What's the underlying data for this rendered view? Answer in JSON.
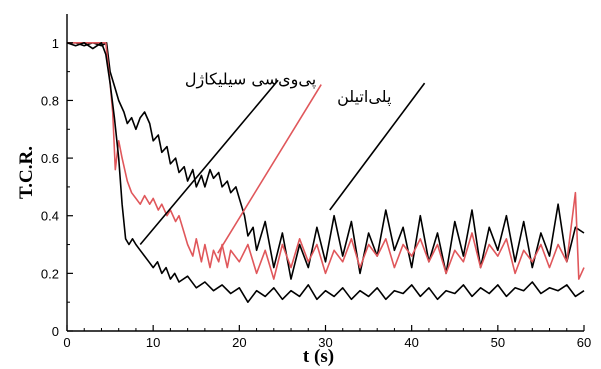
{
  "chart_data": {
    "type": "line",
    "title": "",
    "xlabel": "t (s)",
    "ylabel": "T.C.R.",
    "xlim": [
      0,
      60
    ],
    "ylim": [
      0,
      1.1
    ],
    "grid": false,
    "x_ticks": [
      "0",
      "10",
      "20",
      "30",
      "40",
      "50",
      "60"
    ],
    "y_ticks": [
      "0",
      "0.2",
      "0.4",
      "0.6",
      "0.8",
      "1"
    ],
    "x_tick_values": [
      0,
      10,
      20,
      30,
      40,
      50,
      60
    ],
    "y_tick_values": [
      0,
      0.2,
      0.4,
      0.6,
      0.8,
      1
    ],
    "series": [
      {
        "color": "#000000",
        "points": [
          [
            0,
            1.0
          ],
          [
            1,
            1.0
          ],
          [
            2,
            0.99
          ],
          [
            3,
            1.0
          ],
          [
            4,
            0.99
          ],
          [
            4.6,
            1.0
          ],
          [
            5,
            0.9
          ],
          [
            5.6,
            0.84
          ],
          [
            6,
            0.8
          ],
          [
            6.6,
            0.76
          ],
          [
            7,
            0.72
          ],
          [
            7.5,
            0.74
          ],
          [
            8,
            0.7
          ],
          [
            8.5,
            0.74
          ],
          [
            9,
            0.76
          ],
          [
            9.6,
            0.72
          ],
          [
            10,
            0.66
          ],
          [
            10.6,
            0.68
          ],
          [
            11,
            0.62
          ],
          [
            11.6,
            0.64
          ],
          [
            12,
            0.58
          ],
          [
            12.6,
            0.6
          ],
          [
            13,
            0.55
          ],
          [
            13.6,
            0.57
          ],
          [
            14,
            0.52
          ],
          [
            14.6,
            0.56
          ],
          [
            15,
            0.5
          ],
          [
            15.6,
            0.54
          ],
          [
            16,
            0.5
          ],
          [
            16.6,
            0.56
          ],
          [
            17,
            0.53
          ],
          [
            17.6,
            0.55
          ],
          [
            18,
            0.5
          ],
          [
            18.6,
            0.52
          ],
          [
            19,
            0.48
          ],
          [
            19.6,
            0.5
          ],
          [
            20,
            0.46
          ],
          [
            20.6,
            0.4
          ],
          [
            21,
            0.33
          ],
          [
            21.6,
            0.36
          ],
          [
            22,
            0.28
          ],
          [
            23,
            0.38
          ],
          [
            24,
            0.22
          ],
          [
            25,
            0.34
          ],
          [
            26,
            0.18
          ],
          [
            27,
            0.3
          ],
          [
            28,
            0.22
          ],
          [
            29,
            0.36
          ],
          [
            30,
            0.24
          ],
          [
            31,
            0.4
          ],
          [
            32,
            0.26
          ],
          [
            33,
            0.38
          ],
          [
            34,
            0.2
          ],
          [
            35,
            0.34
          ],
          [
            36,
            0.26
          ],
          [
            37,
            0.42
          ],
          [
            38,
            0.28
          ],
          [
            39,
            0.36
          ],
          [
            40,
            0.22
          ],
          [
            41,
            0.4
          ],
          [
            42,
            0.24
          ],
          [
            43,
            0.34
          ],
          [
            44,
            0.2
          ],
          [
            45,
            0.38
          ],
          [
            46,
            0.26
          ],
          [
            47,
            0.42
          ],
          [
            48,
            0.22
          ],
          [
            49,
            0.36
          ],
          [
            50,
            0.28
          ],
          [
            51,
            0.4
          ],
          [
            52,
            0.24
          ],
          [
            53,
            0.38
          ],
          [
            54,
            0.22
          ],
          [
            55,
            0.34
          ],
          [
            56,
            0.26
          ],
          [
            57,
            0.44
          ],
          [
            58,
            0.24
          ],
          [
            59,
            0.36
          ],
          [
            60,
            0.34
          ]
        ]
      },
      {
        "color": "#e0575b",
        "points": [
          [
            0,
            1.0
          ],
          [
            4.5,
            1.0
          ],
          [
            5,
            0.86
          ],
          [
            5.3,
            0.76
          ],
          [
            5.6,
            0.56
          ],
          [
            6,
            0.66
          ],
          [
            6.4,
            0.6
          ],
          [
            7,
            0.52
          ],
          [
            7.5,
            0.48
          ],
          [
            8,
            0.46
          ],
          [
            8.5,
            0.44
          ],
          [
            9,
            0.47
          ],
          [
            9.6,
            0.44
          ],
          [
            10,
            0.46
          ],
          [
            10.6,
            0.42
          ],
          [
            11,
            0.44
          ],
          [
            11.6,
            0.4
          ],
          [
            12,
            0.42
          ],
          [
            12.6,
            0.38
          ],
          [
            13,
            0.4
          ],
          [
            13.6,
            0.34
          ],
          [
            14,
            0.3
          ],
          [
            14.6,
            0.26
          ],
          [
            15,
            0.32
          ],
          [
            15.6,
            0.24
          ],
          [
            16,
            0.3
          ],
          [
            16.6,
            0.22
          ],
          [
            17,
            0.28
          ],
          [
            17.6,
            0.24
          ],
          [
            18,
            0.3
          ],
          [
            18.6,
            0.22
          ],
          [
            19,
            0.28
          ],
          [
            20,
            0.24
          ],
          [
            21,
            0.3
          ],
          [
            22,
            0.2
          ],
          [
            23,
            0.28
          ],
          [
            24,
            0.18
          ],
          [
            25,
            0.3
          ],
          [
            26,
            0.22
          ],
          [
            27,
            0.32
          ],
          [
            28,
            0.24
          ],
          [
            29,
            0.3
          ],
          [
            30,
            0.2
          ],
          [
            31,
            0.28
          ],
          [
            32,
            0.24
          ],
          [
            33,
            0.32
          ],
          [
            34,
            0.22
          ],
          [
            35,
            0.3
          ],
          [
            36,
            0.26
          ],
          [
            37,
            0.32
          ],
          [
            38,
            0.22
          ],
          [
            39,
            0.3
          ],
          [
            40,
            0.26
          ],
          [
            41,
            0.32
          ],
          [
            42,
            0.24
          ],
          [
            43,
            0.3
          ],
          [
            44,
            0.2
          ],
          [
            45,
            0.28
          ],
          [
            46,
            0.24
          ],
          [
            47,
            0.34
          ],
          [
            48,
            0.22
          ],
          [
            49,
            0.3
          ],
          [
            50,
            0.26
          ],
          [
            51,
            0.32
          ],
          [
            52,
            0.2
          ],
          [
            53,
            0.28
          ],
          [
            54,
            0.24
          ],
          [
            55,
            0.3
          ],
          [
            56,
            0.22
          ],
          [
            57,
            0.3
          ],
          [
            58,
            0.24
          ],
          [
            59,
            0.48
          ],
          [
            59.4,
            0.18
          ],
          [
            60,
            0.22
          ]
        ]
      },
      {
        "color": "#000000",
        "points": [
          [
            0,
            1.0
          ],
          [
            1,
            0.99
          ],
          [
            2,
            1.0
          ],
          [
            3,
            0.98
          ],
          [
            4,
            1.0
          ],
          [
            4.5,
            0.96
          ],
          [
            5,
            0.86
          ],
          [
            5.5,
            0.74
          ],
          [
            6,
            0.6
          ],
          [
            6.4,
            0.44
          ],
          [
            6.8,
            0.32
          ],
          [
            7.2,
            0.3
          ],
          [
            7.6,
            0.32
          ],
          [
            8,
            0.3
          ],
          [
            8.5,
            0.28
          ],
          [
            9,
            0.26
          ],
          [
            9.5,
            0.24
          ],
          [
            10,
            0.22
          ],
          [
            10.5,
            0.24
          ],
          [
            11,
            0.2
          ],
          [
            11.5,
            0.22
          ],
          [
            12,
            0.18
          ],
          [
            12.5,
            0.2
          ],
          [
            13,
            0.17
          ],
          [
            14,
            0.19
          ],
          [
            15,
            0.15
          ],
          [
            16,
            0.17
          ],
          [
            17,
            0.14
          ],
          [
            18,
            0.16
          ],
          [
            19,
            0.13
          ],
          [
            20,
            0.15
          ],
          [
            21,
            0.1
          ],
          [
            22,
            0.14
          ],
          [
            23,
            0.12
          ],
          [
            24,
            0.15
          ],
          [
            25,
            0.11
          ],
          [
            26,
            0.14
          ],
          [
            27,
            0.12
          ],
          [
            28,
            0.16
          ],
          [
            29,
            0.11
          ],
          [
            30,
            0.14
          ],
          [
            31,
            0.12
          ],
          [
            32,
            0.15
          ],
          [
            33,
            0.11
          ],
          [
            34,
            0.14
          ],
          [
            35,
            0.12
          ],
          [
            36,
            0.15
          ],
          [
            37,
            0.11
          ],
          [
            38,
            0.14
          ],
          [
            39,
            0.13
          ],
          [
            40,
            0.16
          ],
          [
            41,
            0.12
          ],
          [
            42,
            0.15
          ],
          [
            43,
            0.11
          ],
          [
            44,
            0.14
          ],
          [
            45,
            0.13
          ],
          [
            46,
            0.16
          ],
          [
            47,
            0.12
          ],
          [
            48,
            0.15
          ],
          [
            49,
            0.13
          ],
          [
            50,
            0.16
          ],
          [
            51,
            0.12
          ],
          [
            52,
            0.15
          ],
          [
            53,
            0.14
          ],
          [
            54,
            0.17
          ],
          [
            55,
            0.13
          ],
          [
            56,
            0.15
          ],
          [
            57,
            0.14
          ],
          [
            58,
            0.16
          ],
          [
            59,
            0.12
          ],
          [
            60,
            0.14
          ]
        ]
      }
    ],
    "annotations": [
      {
        "text": "پی‌وی‌سی سیلیکاژل",
        "label_at": [
          21.3,
          0.855
        ],
        "line_from": [
          8.5,
          0.3
        ],
        "line_to": [
          24.5,
          0.87
        ]
      },
      {
        "text": "",
        "label_at": null,
        "line_from": [
          17.5,
          0.27
        ],
        "line_to": [
          29.5,
          0.855
        ]
      },
      {
        "text": "پلی‌اتیلن",
        "label_at": [
          34.5,
          0.795
        ],
        "line_from": [
          30.5,
          0.42
        ],
        "line_to": [
          41.5,
          0.86
        ]
      }
    ]
  }
}
